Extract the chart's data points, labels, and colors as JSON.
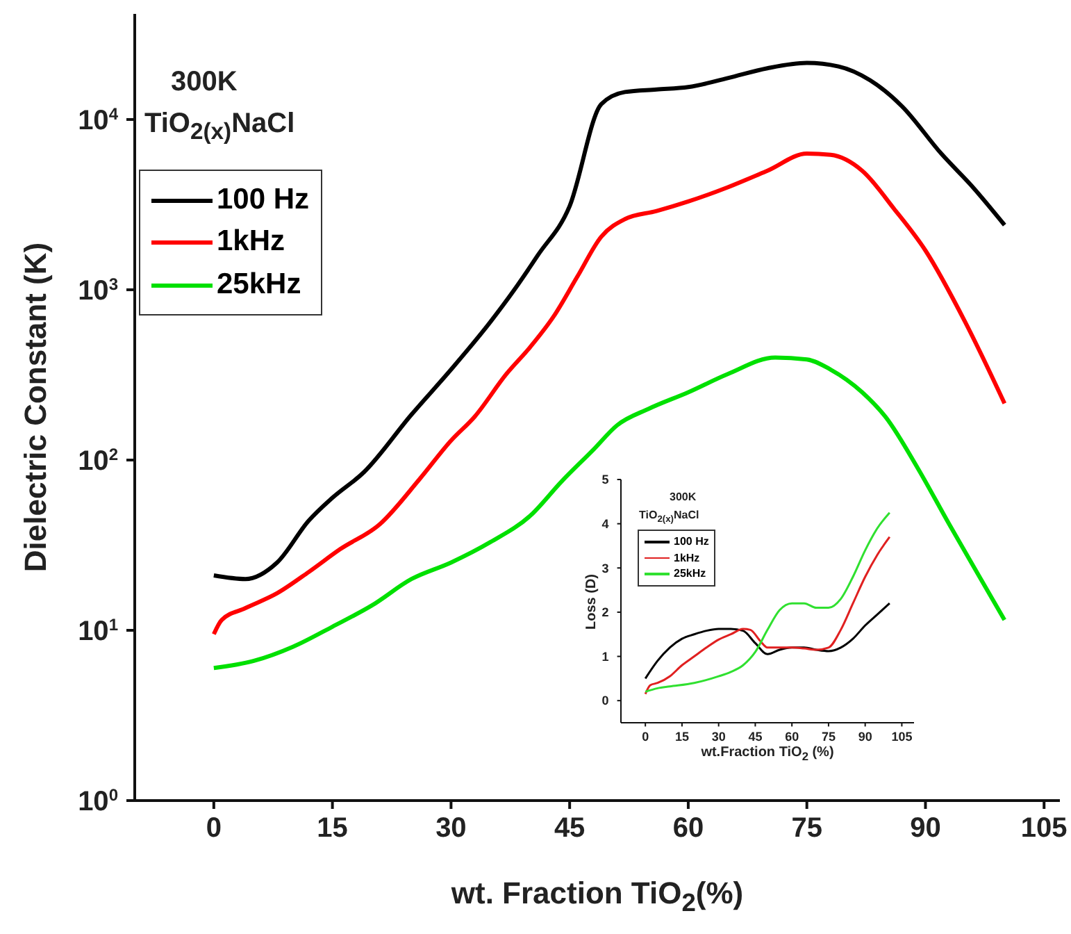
{
  "chart_data": [
    {
      "type": "line",
      "xlabel": "wt. Fraction TiO$_{2}$(%)",
      "ylabel": "Dielectric Constant (K)",
      "annotations": [
        "300K",
        "TiO$_{2(x)}$NaCl"
      ],
      "log": "y",
      "xlim": [
        -10,
        107
      ],
      "ylim": [
        1,
        41700
      ],
      "xticks": [
        0,
        15,
        30,
        45,
        60,
        75,
        90,
        105
      ],
      "yticks": [
        {
          "value": 1,
          "label": "10$^{0}$"
        },
        {
          "value": 10,
          "label": "10$^{1}$"
        },
        {
          "value": 100,
          "label": "10$^{2}$"
        },
        {
          "value": 1000,
          "label": "10$^{3}$"
        },
        {
          "value": 10000,
          "label": "10$^{4}$"
        }
      ],
      "grid": false,
      "legend": "top left",
      "marker": "none",
      "line_style": "solid",
      "series": [
        {
          "name": "100 Hz",
          "color": "#000000",
          "x": [
            0,
            4,
            8,
            12,
            15,
            19,
            25,
            30,
            35,
            38,
            41,
            45,
            49,
            52,
            56,
            60,
            65,
            70,
            75,
            79,
            83,
            87,
            92,
            96,
            100
          ],
          "values": [
            21,
            20,
            25,
            44,
            60,
            85,
            185,
            340,
            650,
            1000,
            1600,
            3100,
            12300,
            14500,
            15000,
            15500,
            17500,
            20000,
            21500,
            20500,
            17000,
            12000,
            6300,
            4000,
            2400
          ]
        },
        {
          "name": "1kHz",
          "color": "#ff0000",
          "x": [
            0,
            1,
            4,
            8,
            12,
            16,
            21,
            26,
            30,
            33,
            37,
            40,
            43,
            46,
            49,
            52,
            56,
            60,
            65,
            70,
            75,
            78,
            82,
            86,
            90,
            95,
            100
          ],
          "values": [
            9.5,
            11.5,
            13.5,
            16.5,
            22,
            30,
            42,
            77,
            130,
            180,
            320,
            460,
            700,
            1200,
            2050,
            2600,
            2900,
            3300,
            4000,
            5000,
            6300,
            6200,
            5000,
            3000,
            1700,
            650,
            215
          ]
        },
        {
          "name": "25kHz",
          "color": "#00e000",
          "x": [
            0,
            5,
            10,
            15,
            20,
            25,
            30,
            35,
            40,
            44,
            48,
            51,
            55,
            60,
            65,
            71,
            75,
            78,
            82,
            85,
            89,
            93,
            97,
            100
          ],
          "values": [
            6,
            6.6,
            8,
            10.5,
            14,
            20,
            25,
            33,
            47,
            75,
            115,
            160,
            200,
            250,
            320,
            400,
            390,
            340,
            250,
            178,
            90,
            42,
            20,
            11.5
          ]
        }
      ]
    },
    {
      "type": "line",
      "xlabel": "wt.Fraction TiO$_{2}$ (%)",
      "ylabel": "Loss (D)",
      "annotations": [
        "300K",
        "TiO$_{2(x)}$NaCl"
      ],
      "xlim": [
        -10,
        110
      ],
      "ylim": [
        -0.5,
        5
      ],
      "xticks": [
        0,
        15,
        30,
        45,
        60,
        75,
        90,
        105
      ],
      "yticks": [
        0,
        1,
        2,
        3,
        4,
        5
      ],
      "grid": false,
      "legend": "top left",
      "marker": "none",
      "line_style": "solid",
      "series": [
        {
          "name": "100 Hz",
          "color": "#000000",
          "x": [
            0,
            5,
            10,
            15,
            20,
            25,
            30,
            35,
            40,
            45,
            50,
            55,
            60,
            65,
            70,
            75,
            80,
            85,
            90,
            95,
            100
          ],
          "values": [
            0.5,
            0.9,
            1.2,
            1.4,
            1.5,
            1.58,
            1.62,
            1.62,
            1.58,
            1.3,
            1.05,
            1.15,
            1.2,
            1.2,
            1.15,
            1.12,
            1.2,
            1.4,
            1.7,
            1.95,
            2.2
          ]
        },
        {
          "name": "1kHz",
          "color": "#e02020",
          "x": [
            0,
            2,
            5,
            10,
            15,
            20,
            25,
            30,
            35,
            40,
            43,
            47,
            50,
            55,
            60,
            65,
            70,
            75,
            80,
            85,
            90,
            95,
            100
          ],
          "values": [
            0.15,
            0.35,
            0.4,
            0.55,
            0.8,
            1.0,
            1.2,
            1.38,
            1.5,
            1.62,
            1.6,
            1.35,
            1.2,
            1.2,
            1.2,
            1.18,
            1.15,
            1.2,
            1.6,
            2.2,
            2.8,
            3.3,
            3.7
          ]
        },
        {
          "name": "25kHz",
          "color": "#30e030",
          "x": [
            0,
            5,
            10,
            20,
            30,
            35,
            40,
            45,
            50,
            55,
            60,
            65,
            70,
            75,
            80,
            85,
            90,
            95,
            100
          ],
          "values": [
            0.2,
            0.28,
            0.32,
            0.4,
            0.55,
            0.65,
            0.8,
            1.1,
            1.6,
            2.05,
            2.2,
            2.2,
            2.1,
            2.1,
            2.3,
            2.8,
            3.4,
            3.9,
            4.25
          ]
        }
      ]
    }
  ]
}
